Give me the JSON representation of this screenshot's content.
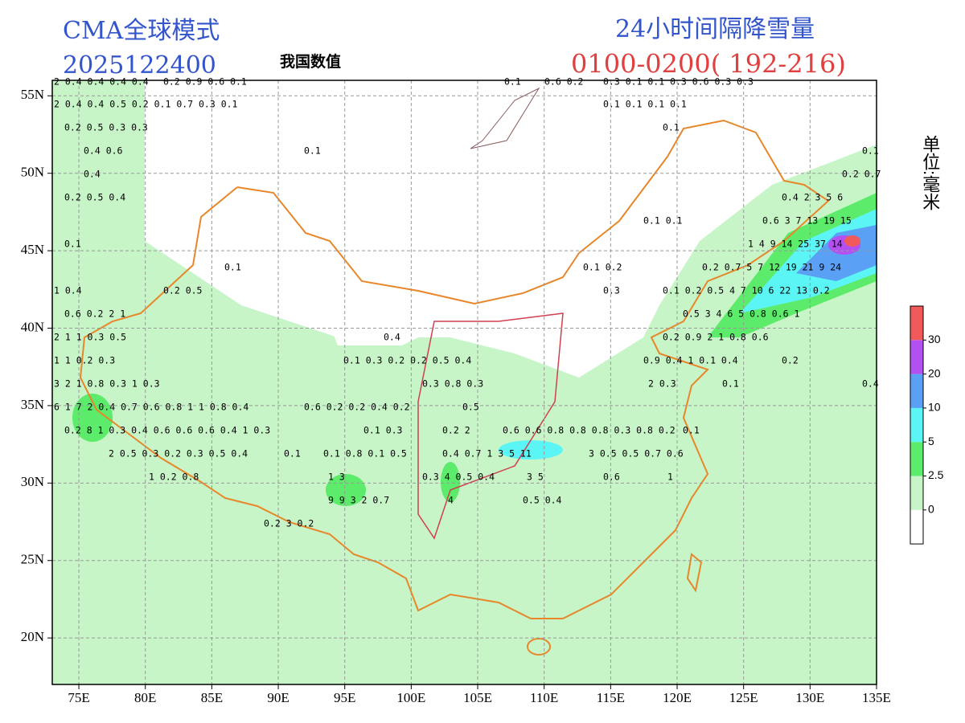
{
  "header": {
    "model": "CMA全球模式",
    "init_time": "2025122400",
    "center_label": "我国数值",
    "product": "24小时间隔降雪量",
    "period": "0100-0200( 192-216)",
    "unit": "单位:毫米"
  },
  "map": {
    "xlim": [
      73,
      135
    ],
    "ylim": [
      17,
      56
    ],
    "xticks": [
      {
        "value": 75,
        "label": "75E"
      },
      {
        "value": 80,
        "label": "80E"
      },
      {
        "value": 85,
        "label": "85E"
      },
      {
        "value": 90,
        "label": "90E"
      },
      {
        "value": 95,
        "label": "95E"
      },
      {
        "value": 100,
        "label": "100E"
      },
      {
        "value": 105,
        "label": "105E"
      },
      {
        "value": 110,
        "label": "110E"
      },
      {
        "value": 115,
        "label": "115E"
      },
      {
        "value": 120,
        "label": "120E"
      },
      {
        "value": 125,
        "label": "125E"
      },
      {
        "value": 130,
        "label": "130E"
      },
      {
        "value": 135,
        "label": "135E"
      }
    ],
    "yticks": [
      {
        "value": 20,
        "label": "20N"
      },
      {
        "value": 25,
        "label": "25N"
      },
      {
        "value": 30,
        "label": "30N"
      },
      {
        "value": 35,
        "label": "35N"
      },
      {
        "value": 40,
        "label": "40N"
      },
      {
        "value": 45,
        "label": "45N"
      },
      {
        "value": 50,
        "label": "50N"
      },
      {
        "value": 55,
        "label": "55N"
      }
    ],
    "station_labels": [
      "2 0.4 0.4 0.4 0.4",
      "0.2 0.9 0.6 0.1",
      "0.1",
      "0.6 0.2",
      "0.3 0.1 0.1 0.3 0.6 0.3 0.3",
      "2 0.4 0.4 0.5 0.2 0.1 0.7 0.3 0.1",
      "0.1 0.1 0.1 0.1",
      "0.2 0.5 0.3 0.3",
      "0.1",
      "0.4 0.6",
      "0.1",
      "0.1",
      "0.4",
      "0.2 0.7",
      "0.2 0.5 0.4",
      "0.4 2 3 5 6",
      "0.1 0.1",
      "0.6 3 7 13 19 15",
      "0.1",
      "1 4 9 14 25 37 14",
      "0.1",
      "0.1 0.2",
      "0.2 0.7 5 7 12 19 21 9 24",
      "1 0.4",
      "0.2 0.5",
      "0.3",
      "0.1 0.2 0.5 4 7 10 6 22 13 0.2",
      "0.6 0.2 2 1",
      "0.5 3 4 6 5 0.8 0.6 1",
      "2 1 1 0.3 0.5",
      "0.4",
      "0.2 0.9 2 1 0.8 0.6",
      "1 1 0.2 0.3",
      "0.1 0.3 0.2 0.2 0.5 0.4",
      "0.9 0.4 1 0.1 0.4",
      "0.2",
      "3 2 1 0.8 0.3 1 0.3",
      "0.3 0.8 0.3",
      "2 0.3",
      "0.1",
      "0.4",
      "6 1 7 2 0.4 0.7 0.6 0.8 1 1 0.8 0.4",
      "0.6 0.2 0.2 0.4 0.2",
      "0.5",
      "0.2 8 1 0.3 0.4 0.6 0.6 0.6 0.4 1 0.3",
      "0.1 0.3",
      "0.2 2",
      "0.6 0.6 0.8 0.8 0.8 0.3 0.8 0.2",
      "0.1",
      "2 0.5 0.3 0.2 0.3 0.5 0.4",
      "0.1",
      "0.1 0.8 0.1 0.5",
      "0.4 0.7 1 3 5 11",
      "3 0.5 0.5 0.7 0.6",
      "1 0.2 0.8",
      "1 3",
      "0.3 4 0.5 0.4",
      "3 5",
      "0.6",
      "1",
      "9 9 3 2 0.7",
      "4",
      "0.5 0.4",
      "0.2 3 0.2"
    ]
  },
  "legend": {
    "levels": [
      0,
      2.5,
      5,
      10,
      20,
      30
    ],
    "colors": [
      "#ffffff",
      "#c8f5c8",
      "#5ceb6a",
      "#5cf5f5",
      "#5aa0f5",
      "#b450f0",
      "#f05a5a"
    ]
  }
}
